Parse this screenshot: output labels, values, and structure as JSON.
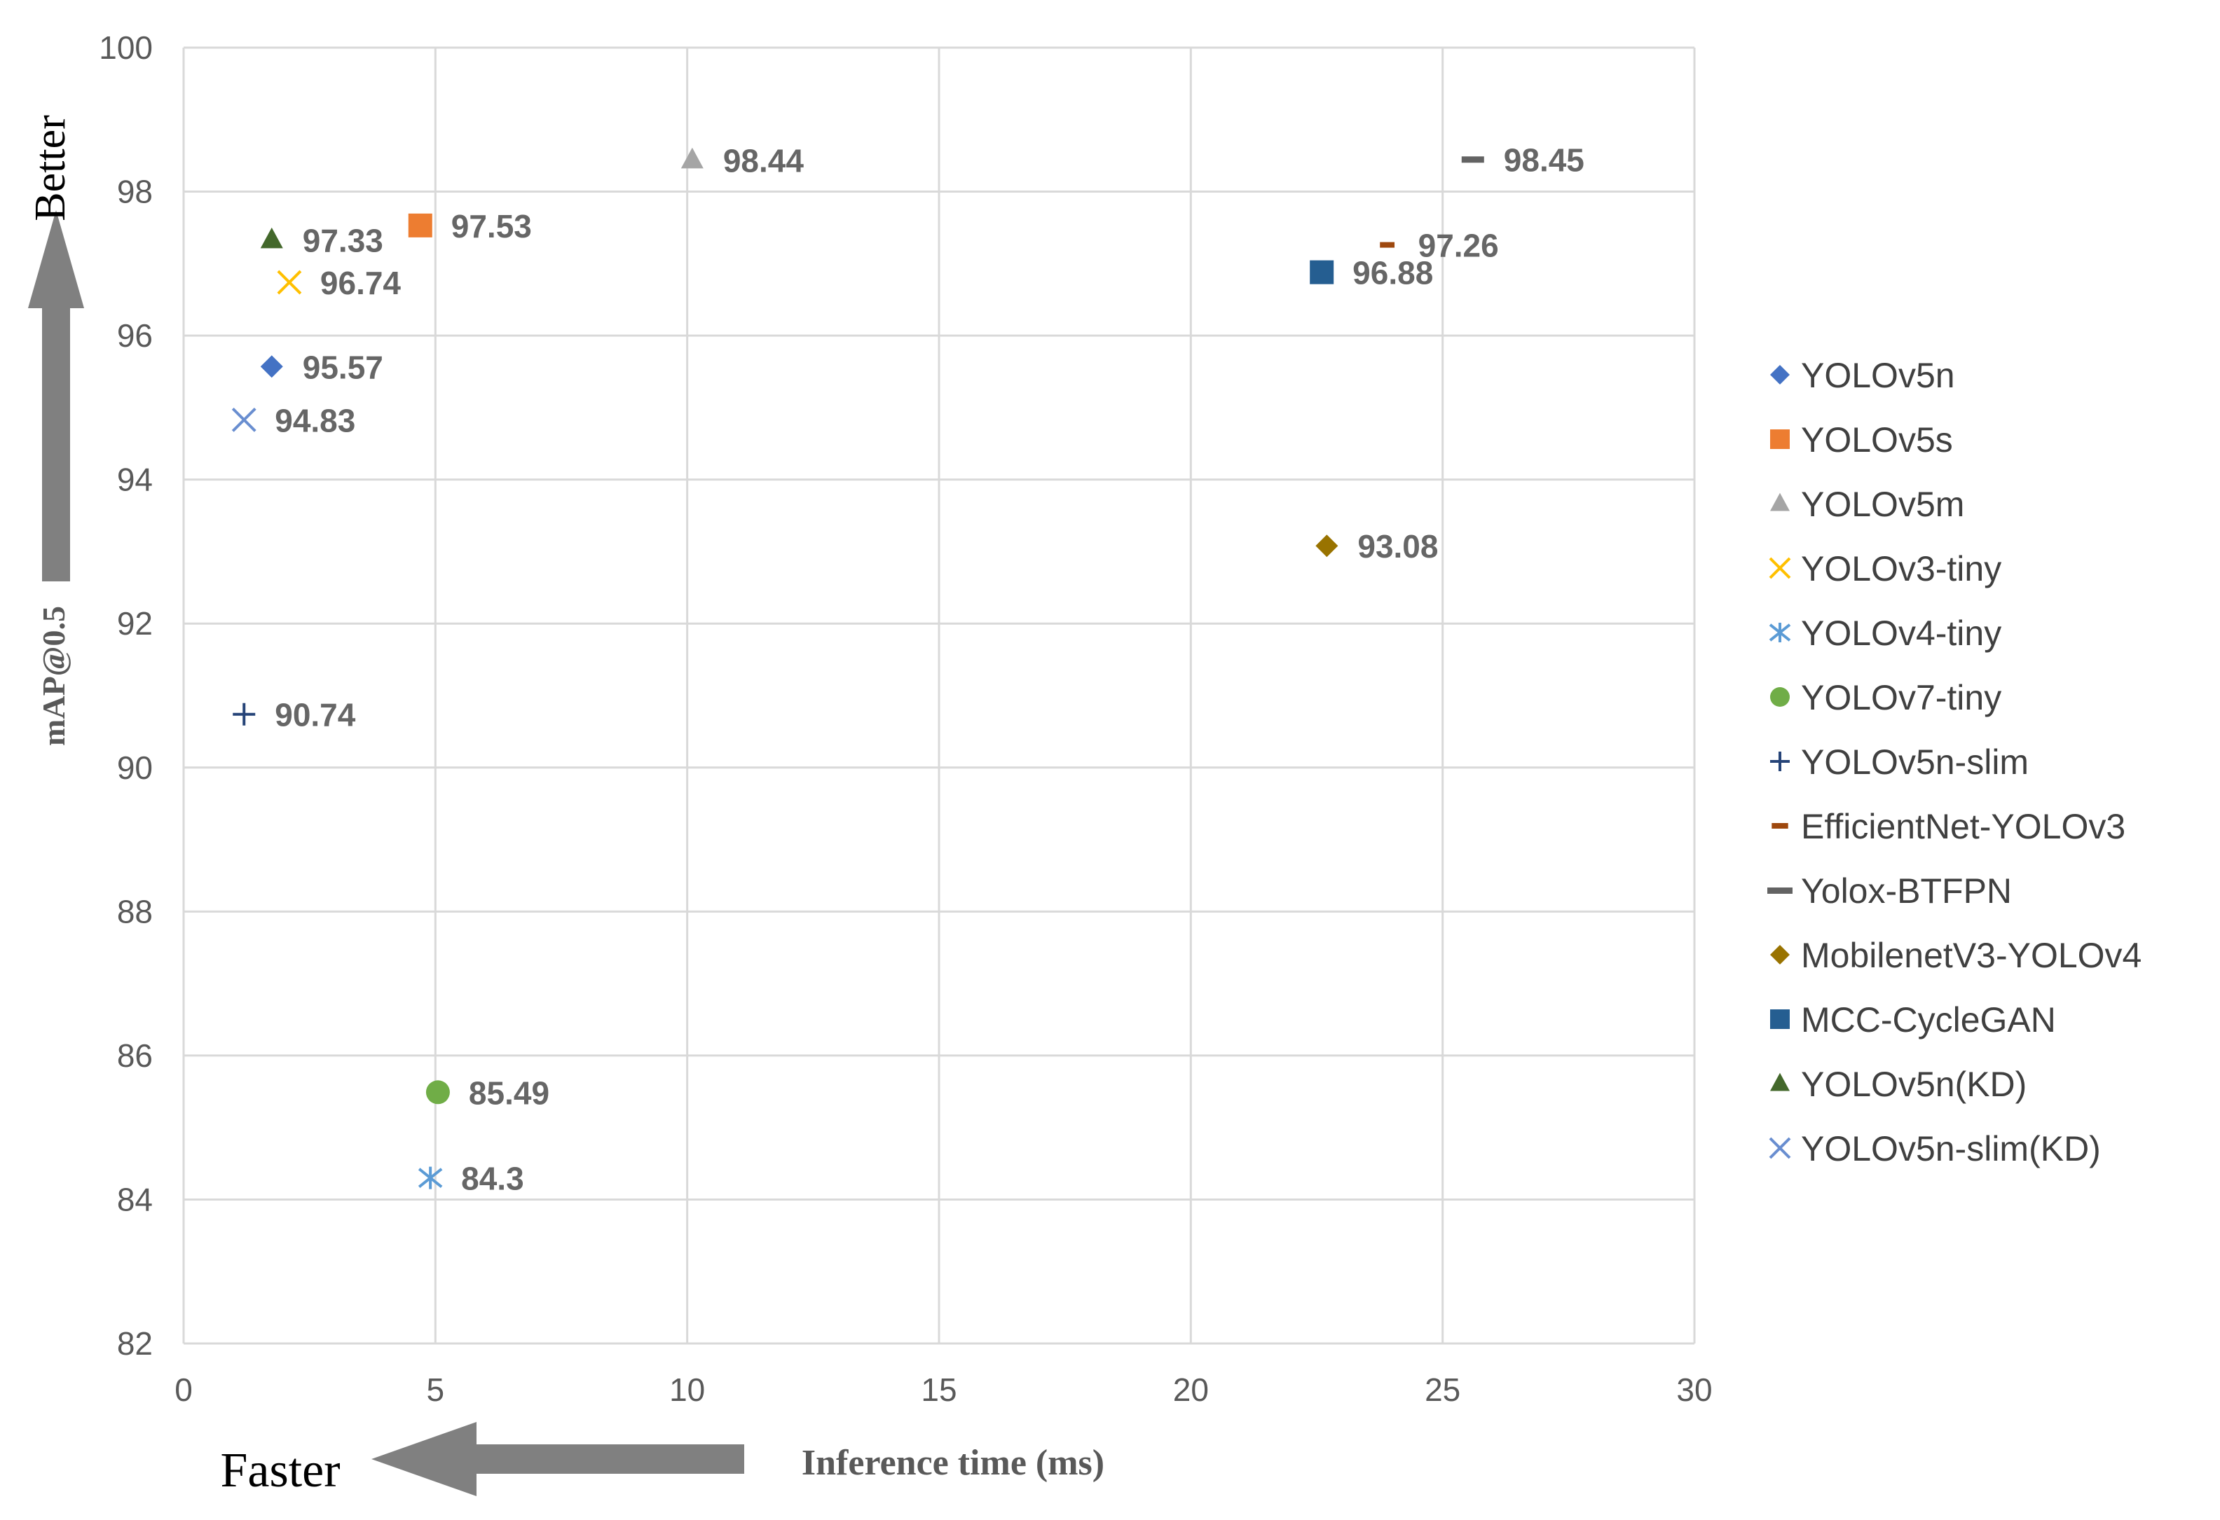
{
  "chart_data": {
    "type": "scatter",
    "title": "",
    "xlabel": "Inference time (ms)",
    "ylabel": "mAP@0.5",
    "xlim": [
      0,
      30
    ],
    "ylim": [
      82,
      100
    ],
    "xticks": [
      "0",
      "5",
      "10",
      "15",
      "20",
      "25",
      "30"
    ],
    "yticks": [
      "82",
      "84",
      "86",
      "88",
      "90",
      "92",
      "94",
      "96",
      "98",
      "100"
    ],
    "grid": true,
    "legend_position": "right",
    "annotations": {
      "better": "Better",
      "faster": "Faster"
    },
    "series": [
      {
        "name": "YOLOv5n",
        "marker": "diamond",
        "color": "#4472C4",
        "x": 1.75,
        "y": 95.57,
        "label": "95.57"
      },
      {
        "name": "YOLOv5s",
        "marker": "square",
        "color": "#ED7D31",
        "x": 4.7,
        "y": 97.53,
        "label": "97.53"
      },
      {
        "name": "YOLOv5m",
        "marker": "triangle",
        "color": "#A5A5A5",
        "x": 10.1,
        "y": 98.44,
        "label": "98.44"
      },
      {
        "name": "YOLOv3-tiny",
        "marker": "x",
        "color": "#FFC000",
        "x": 2.1,
        "y": 96.74,
        "label": "96.74"
      },
      {
        "name": "YOLOv4-tiny",
        "marker": "star",
        "color": "#5B9BD5",
        "x": 4.9,
        "y": 84.3,
        "label": "84.3"
      },
      {
        "name": "YOLOv7-tiny",
        "marker": "circle",
        "color": "#70AD47",
        "x": 5.05,
        "y": 85.49,
        "label": "85.49"
      },
      {
        "name": "YOLOv5n-slim",
        "marker": "plus",
        "color": "#264478",
        "x": 1.2,
        "y": 90.74,
        "label": "90.74"
      },
      {
        "name": "EfficientNet-YOLOv3",
        "marker": "dash-small",
        "color": "#9E480E",
        "x": 23.9,
        "y": 97.26,
        "label": "97.26"
      },
      {
        "name": "Yolox-BTFPN",
        "marker": "dash",
        "color": "#636363",
        "x": 25.6,
        "y": 98.45,
        "label": "98.45"
      },
      {
        "name": "MobilenetV3-YOLOv4",
        "marker": "diamond",
        "color": "#997300",
        "x": 22.7,
        "y": 93.08,
        "label": "93.08"
      },
      {
        "name": "MCC-CycleGAN",
        "marker": "square",
        "color": "#255E91",
        "x": 22.6,
        "y": 96.88,
        "label": "96.88"
      },
      {
        "name": "YOLOv5n(KD)",
        "marker": "triangle",
        "color": "#43682B",
        "x": 1.75,
        "y": 97.33,
        "label": "97.33"
      },
      {
        "name": "YOLOv5n-slim(KD)",
        "marker": "x",
        "color": "#698ED0",
        "x": 1.2,
        "y": 94.83,
        "label": "94.83"
      }
    ]
  }
}
